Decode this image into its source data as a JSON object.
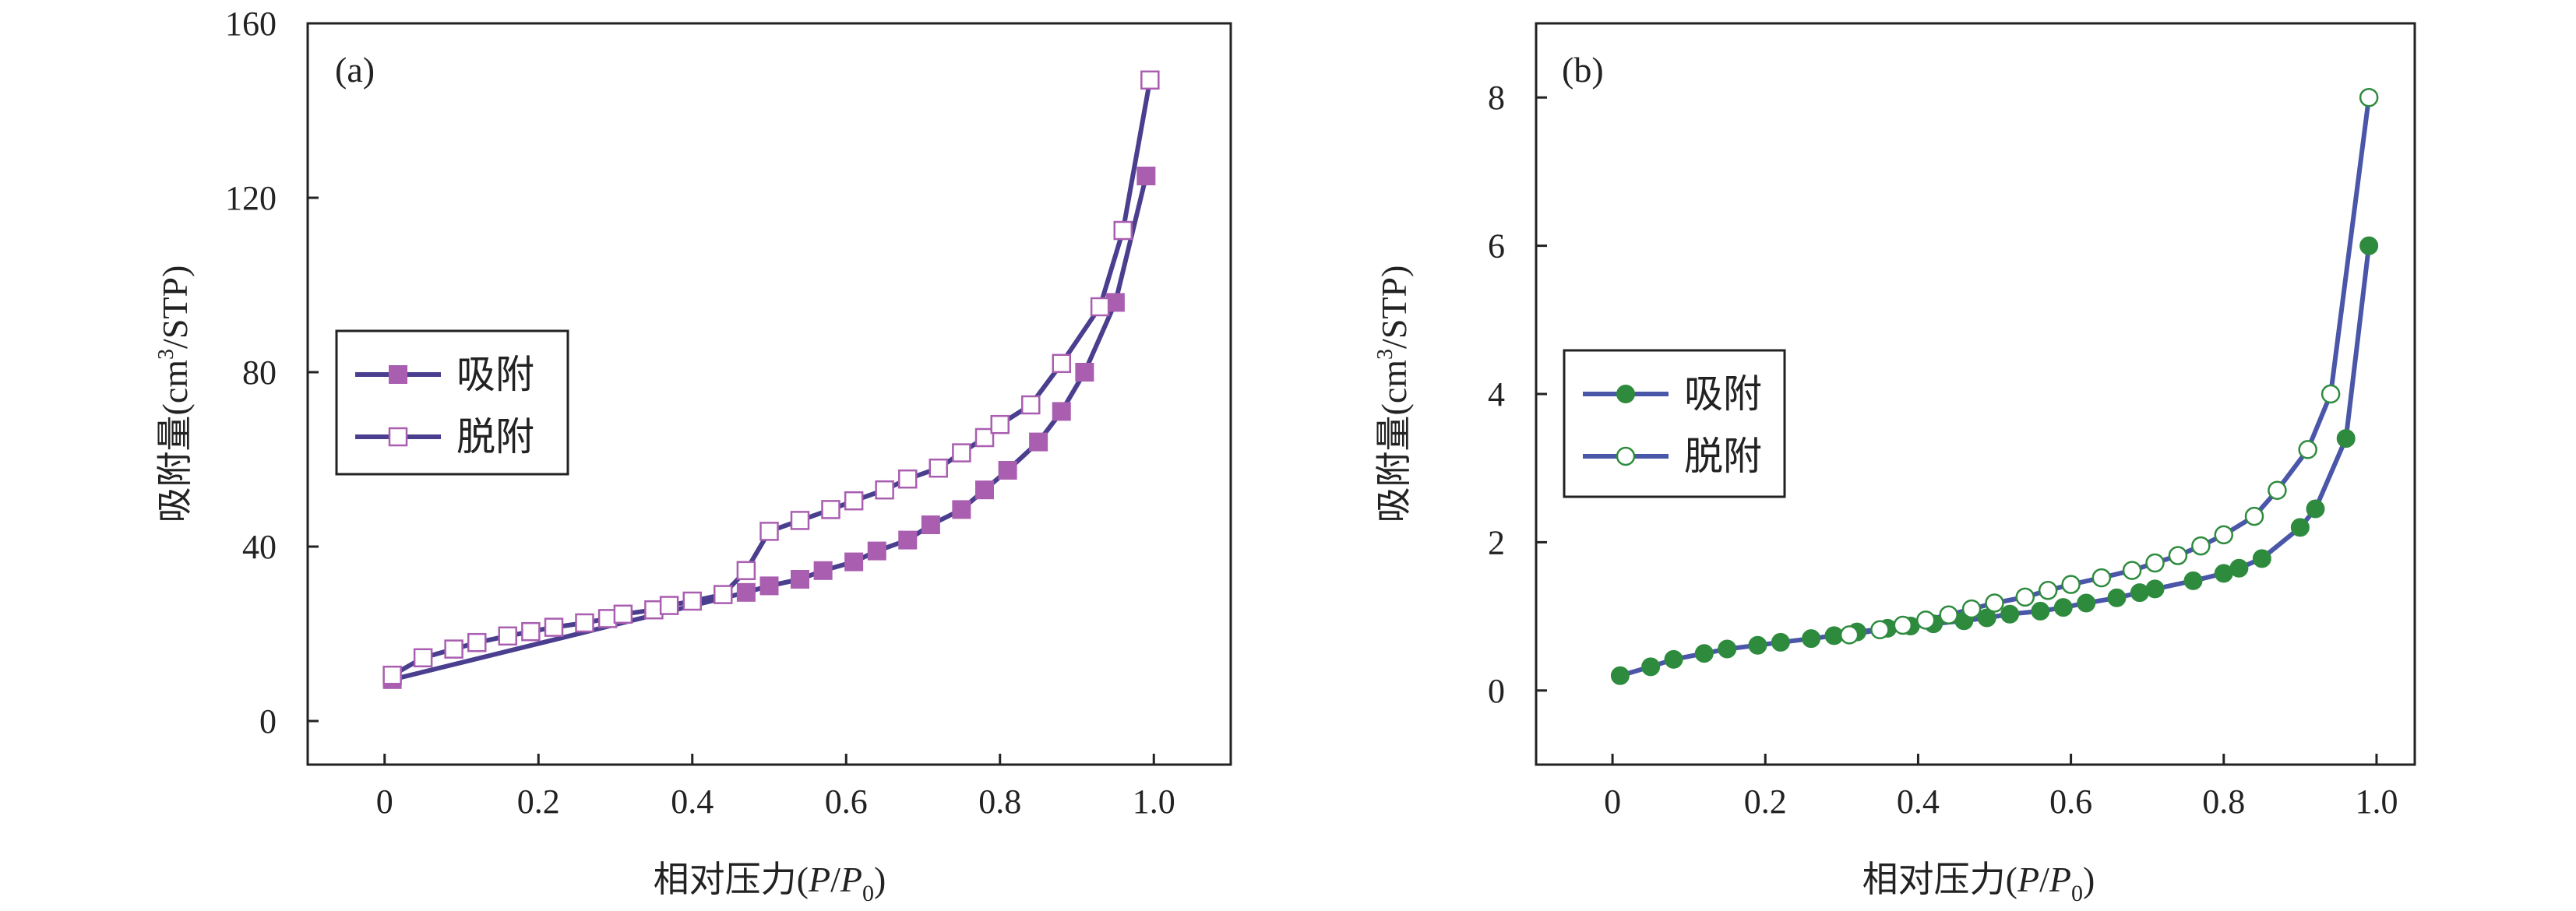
{
  "chart_data": [
    {
      "panel_label": "(a)",
      "type": "line",
      "xlabel": "相对压力(P/P0)",
      "ylabel": "吸附量(cm³/STP)",
      "xlim": [
        -0.1,
        1.1
      ],
      "ylim": [
        -10,
        160
      ],
      "x_ticks": [
        "0",
        "0.2",
        "0.4",
        "0.6",
        "0.8",
        "1.0"
      ],
      "x_tick_values": [
        0,
        0.2,
        0.4,
        0.6,
        0.8,
        1.0
      ],
      "y_ticks": [
        "0",
        "40",
        "80",
        "120",
        "160"
      ],
      "y_tick_values": [
        0,
        40,
        80,
        120,
        160
      ],
      "line_color": "#4a3f8f",
      "marker_color": "#a95eb0",
      "legend": {
        "placement": "left-middle"
      },
      "series": [
        {
          "name": "吸附",
          "marker": "filled-square",
          "x": [
            0.01,
            0.47,
            0.5,
            0.54,
            0.57,
            0.61,
            0.64,
            0.68,
            0.71,
            0.75,
            0.78,
            0.81,
            0.85,
            0.88,
            0.91,
            0.95,
            0.99
          ],
          "y": [
            9.5,
            29.5,
            31,
            32.5,
            34.5,
            36.5,
            39,
            41.5,
            45,
            48.5,
            53,
            57.5,
            64,
            71,
            80,
            96,
            125
          ]
        },
        {
          "name": "脱附",
          "marker": "open-square",
          "x": [
            0.01,
            0.05,
            0.09,
            0.12,
            0.16,
            0.19,
            0.22,
            0.26,
            0.29,
            0.31,
            0.35,
            0.37,
            0.4,
            0.44,
            0.47,
            0.5,
            0.54,
            0.58,
            0.61,
            0.65,
            0.68,
            0.72,
            0.75,
            0.78,
            0.8,
            0.84,
            0.88,
            0.93,
            0.96,
            0.995
          ],
          "y": [
            10.5,
            14.5,
            16.5,
            18,
            19.5,
            20.5,
            21.5,
            22.5,
            23.5,
            24.5,
            25.5,
            26.5,
            27.5,
            29,
            34.5,
            43.5,
            46,
            48.5,
            50.5,
            53,
            55.5,
            58,
            61.5,
            65,
            68,
            72.5,
            82,
            95,
            112.5,
            147
          ]
        }
      ]
    },
    {
      "panel_label": "(b)",
      "type": "line",
      "xlabel": "相对压力(P/P0)",
      "ylabel": "吸附量(cm³/STP)",
      "xlim": [
        -0.1,
        1.05
      ],
      "ylim": [
        -1,
        9
      ],
      "x_ticks": [
        "0",
        "0.2",
        "0.4",
        "0.6",
        "0.8",
        "1.0"
      ],
      "x_tick_values": [
        0,
        0.2,
        0.4,
        0.6,
        0.8,
        1.0
      ],
      "y_ticks": [
        "0",
        "2",
        "4",
        "6",
        "8"
      ],
      "y_tick_values": [
        0,
        2,
        4,
        6,
        8
      ],
      "line_color": "#4a56a8",
      "marker_color": "#2e8b3e",
      "legend": {
        "placement": "left-middle"
      },
      "series": [
        {
          "name": "吸附",
          "marker": "filled-circle",
          "x": [
            0.01,
            0.05,
            0.08,
            0.12,
            0.15,
            0.19,
            0.22,
            0.26,
            0.29,
            0.32,
            0.36,
            0.39,
            0.42,
            0.46,
            0.49,
            0.52,
            0.56,
            0.59,
            0.62,
            0.66,
            0.69,
            0.71,
            0.76,
            0.8,
            0.82,
            0.85,
            0.9,
            0.92,
            0.96,
            0.99
          ],
          "y": [
            0.2,
            0.32,
            0.42,
            0.5,
            0.56,
            0.61,
            0.65,
            0.7,
            0.74,
            0.79,
            0.84,
            0.87,
            0.9,
            0.94,
            0.98,
            1.03,
            1.07,
            1.12,
            1.18,
            1.25,
            1.32,
            1.37,
            1.48,
            1.58,
            1.65,
            1.78,
            2.2,
            2.45,
            3.4,
            6.0
          ]
        },
        {
          "name": "脱附",
          "marker": "open-circle",
          "x": [
            0.31,
            0.35,
            0.38,
            0.41,
            0.44,
            0.47,
            0.5,
            0.54,
            0.57,
            0.6,
            0.64,
            0.68,
            0.71,
            0.74,
            0.77,
            0.8,
            0.84,
            0.87,
            0.91,
            0.94,
            0.99
          ],
          "y": [
            0.75,
            0.82,
            0.88,
            0.95,
            1.02,
            1.1,
            1.18,
            1.26,
            1.35,
            1.43,
            1.52,
            1.62,
            1.72,
            1.82,
            1.95,
            2.1,
            2.35,
            2.7,
            3.25,
            4.0,
            8.0
          ]
        }
      ]
    }
  ]
}
